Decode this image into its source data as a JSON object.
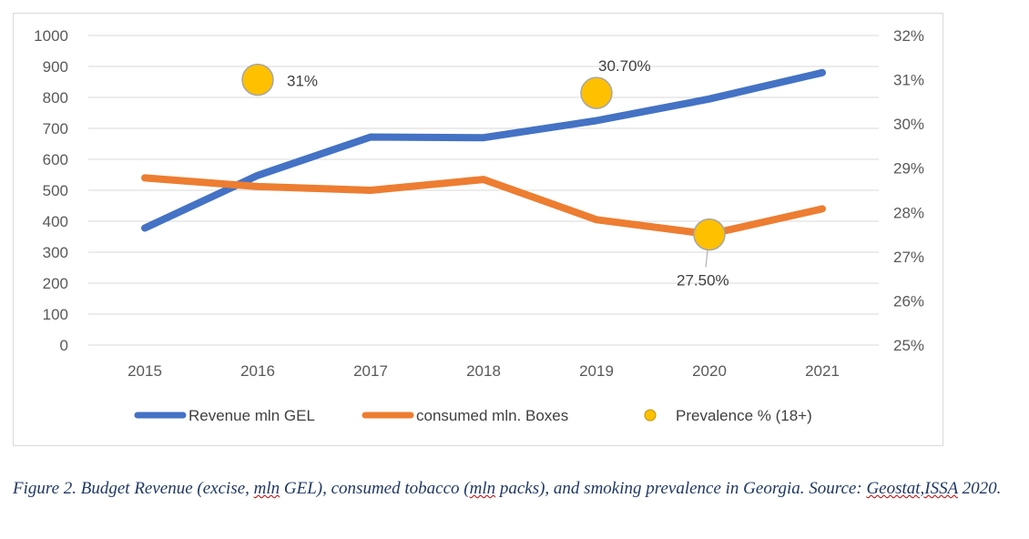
{
  "chart_data": {
    "type": "line",
    "categories": [
      "2015",
      "2016",
      "2017",
      "2018",
      "2019",
      "2020",
      "2021"
    ],
    "series": [
      {
        "name": "Revenue mln GEL",
        "axis": "left",
        "color": "#4472c4",
        "values": [
          378,
          548,
          672,
          670,
          725,
          795,
          880
        ]
      },
      {
        "name": "consumed mln. Boxes",
        "axis": "left",
        "color": "#ed7d31",
        "values": [
          540,
          512,
          500,
          535,
          405,
          358,
          440
        ]
      }
    ],
    "prevalence": {
      "name": "Prevalence % (18+)",
      "axis": "right",
      "color": "#ffc000",
      "points": [
        {
          "year": "2016",
          "value": 31.0,
          "label": "31%"
        },
        {
          "year": "2019",
          "value": 30.7,
          "label": "30.70%"
        },
        {
          "year": "2020",
          "value": 27.5,
          "label": "27.50%"
        }
      ]
    },
    "left_axis": {
      "ylim": [
        0,
        1000
      ],
      "ticks": [
        "0",
        "100",
        "200",
        "300",
        "400",
        "500",
        "600",
        "700",
        "800",
        "900",
        "1000"
      ]
    },
    "right_axis": {
      "ylim": [
        25,
        32
      ],
      "ticks": [
        "25%",
        "26%",
        "27%",
        "28%",
        "29%",
        "30%",
        "31%",
        "32%"
      ]
    },
    "grid": true,
    "legend_position": "bottom"
  },
  "caption": {
    "part1": "Figure 2. Budget Revenue (excise, ",
    "part2": "mln",
    "part3": " GEL), consumed tobacco (",
    "part4": "mln",
    "part5": " packs), and smoking prevalence in Georgia. Source: ",
    "part6": "Geostat,ISSA",
    "part7": " 2020."
  }
}
